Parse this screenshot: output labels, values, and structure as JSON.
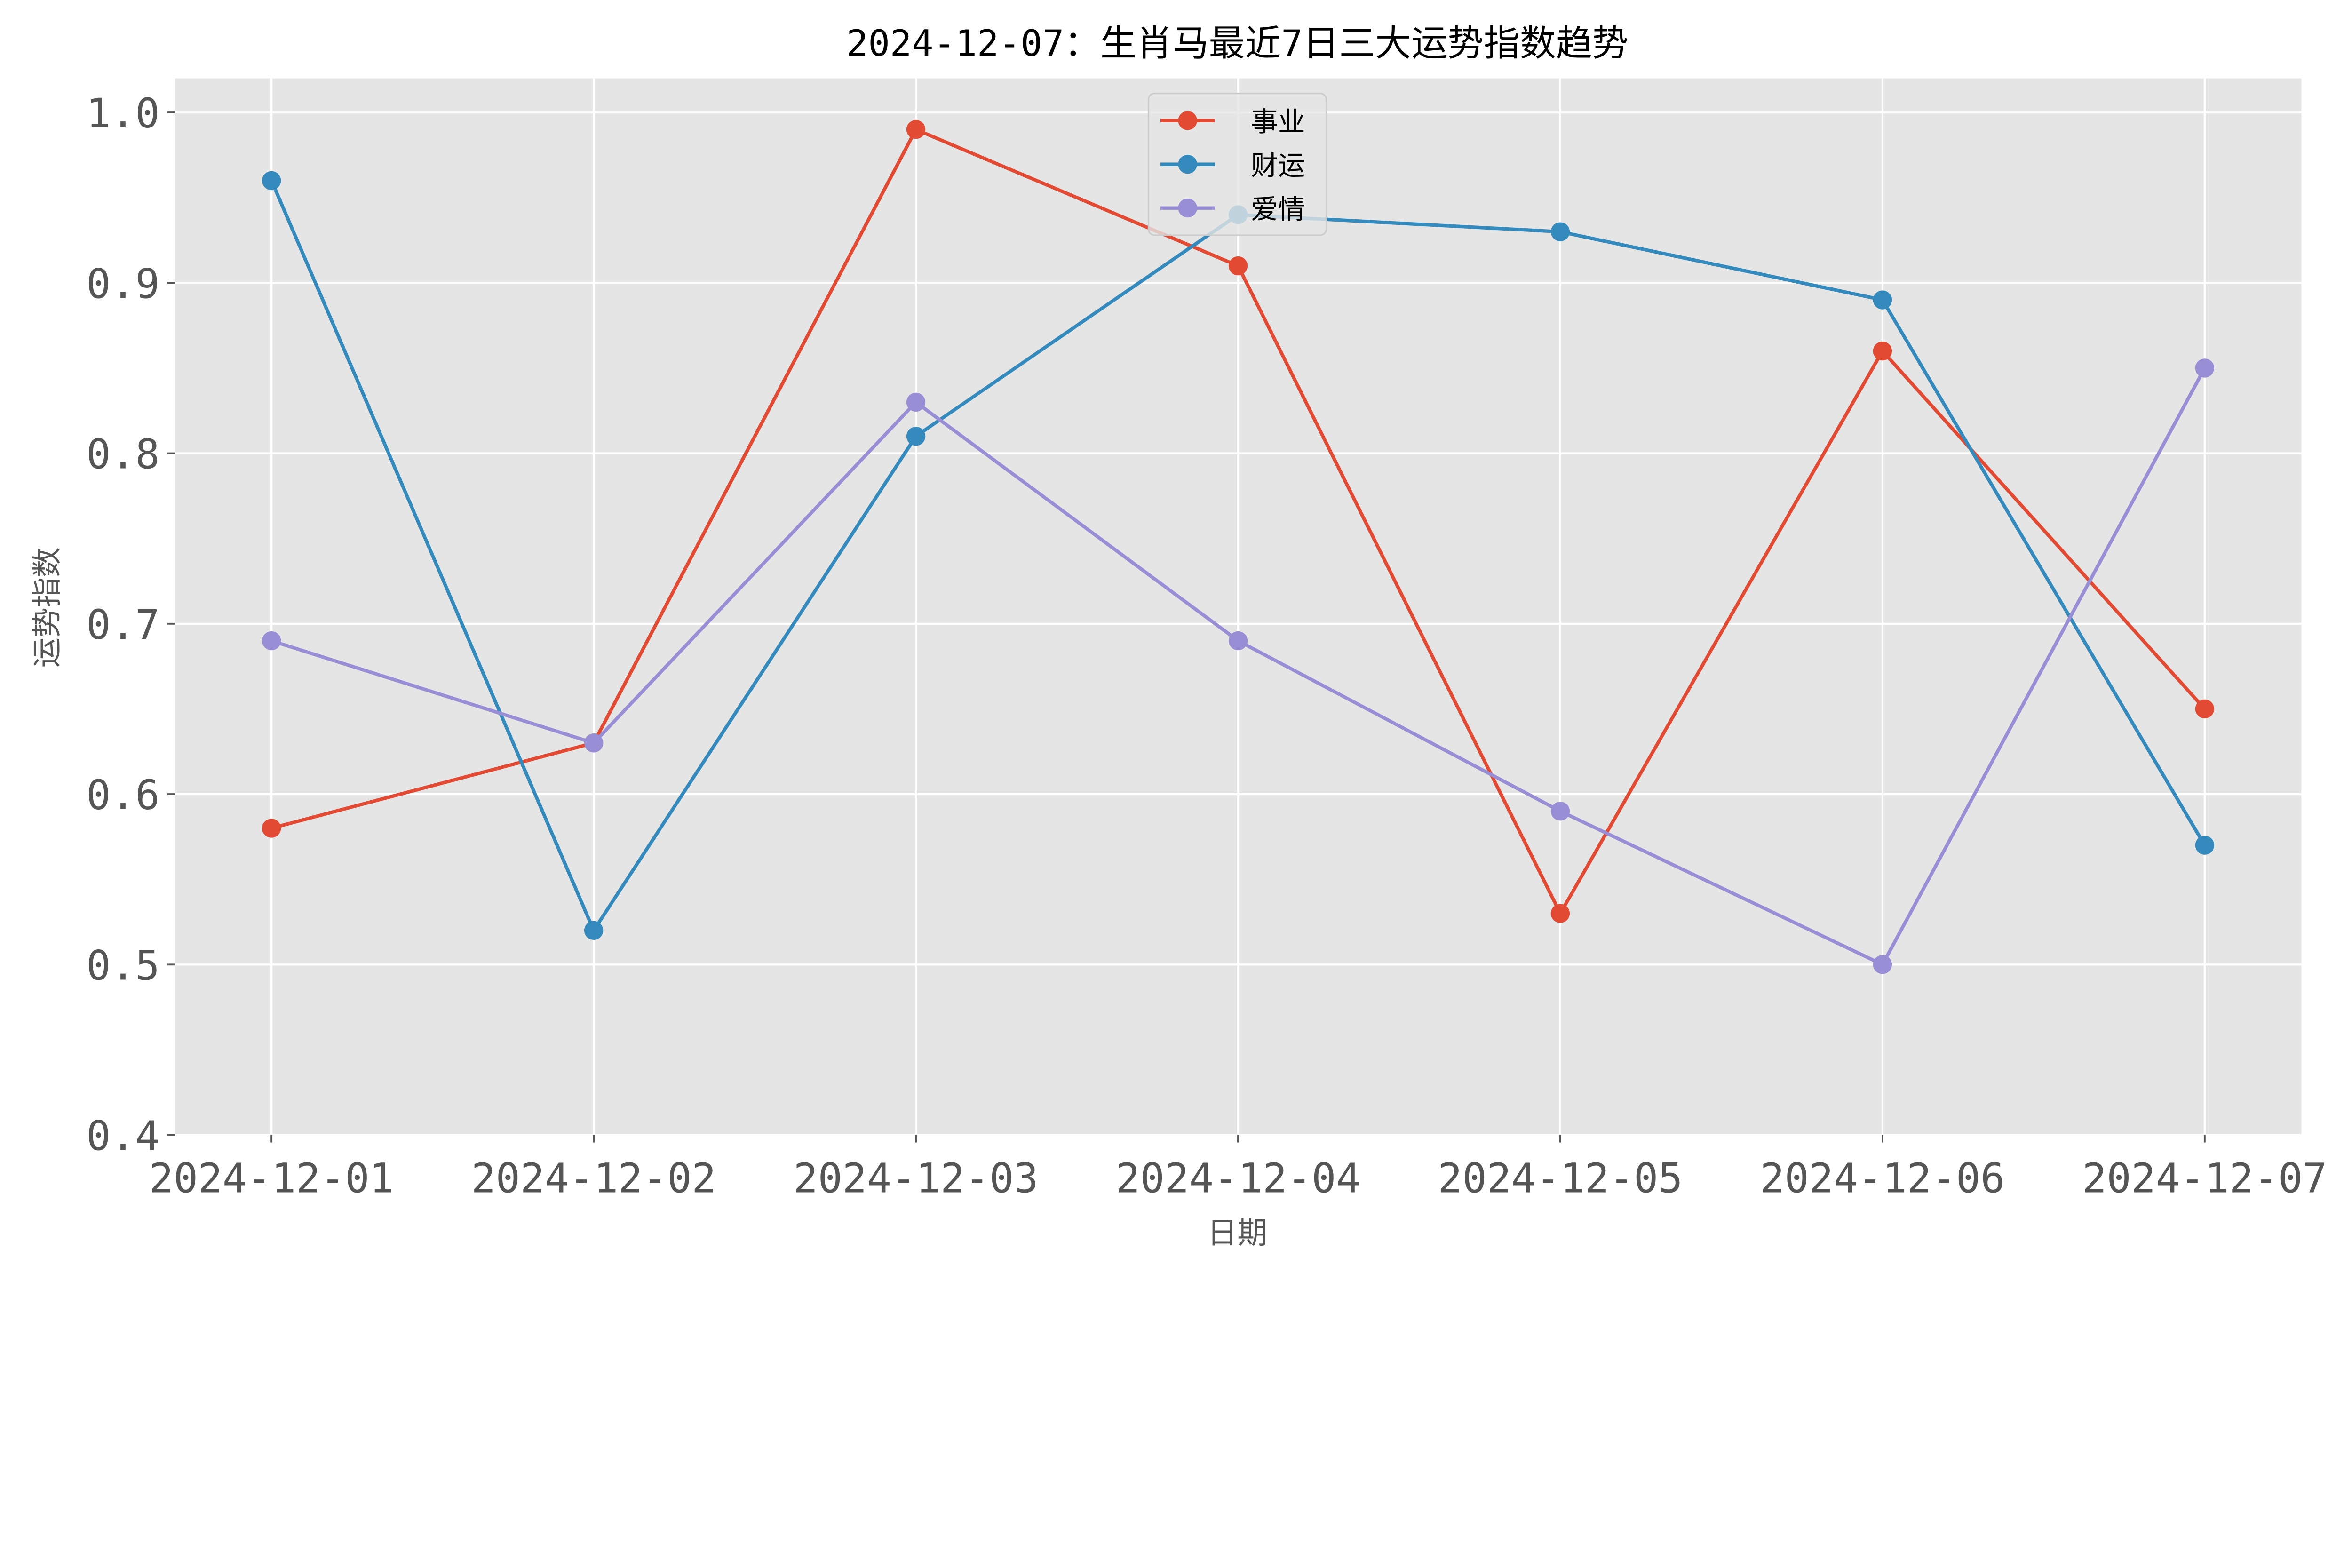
{
  "chart_data": {
    "type": "line",
    "title": "2024-12-07：生肖马最近7日三大运势指数趋势",
    "xlabel": "日期",
    "ylabel": "运势指数",
    "categories": [
      "2024-12-01",
      "2024-12-02",
      "2024-12-03",
      "2024-12-04",
      "2024-12-05",
      "2024-12-06",
      "2024-12-07"
    ],
    "ylim": [
      0.4,
      1.02
    ],
    "yticks": [
      "0.4",
      "0.5",
      "0.6",
      "0.7",
      "0.8",
      "0.9",
      "1.0"
    ],
    "grid": true,
    "legend_position": "top-center",
    "background": "#E5E5E5",
    "series": [
      {
        "name": "事业",
        "color": "#E24A33",
        "values": [
          0.58,
          0.63,
          0.99,
          0.91,
          0.53,
          0.86,
          0.65
        ]
      },
      {
        "name": "财运",
        "color": "#348ABD",
        "values": [
          0.96,
          0.52,
          0.81,
          0.94,
          0.93,
          0.89,
          0.57
        ]
      },
      {
        "name": "爱情",
        "color": "#988ED5",
        "values": [
          0.69,
          0.63,
          0.83,
          0.69,
          0.59,
          0.5,
          0.85
        ]
      }
    ]
  }
}
